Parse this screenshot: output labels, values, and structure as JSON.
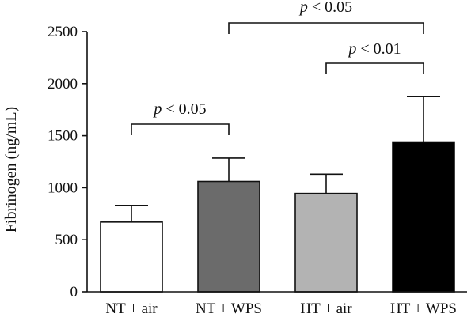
{
  "chart_data": {
    "type": "bar",
    "ylabel": "Fibrinogen (ng/mL)",
    "ylim": [
      0,
      2500
    ],
    "yticks": [
      0,
      500,
      1000,
      1500,
      2000,
      2500
    ],
    "categories": [
      "NT + air",
      "NT + WPS",
      "HT + air",
      "HT + WPS"
    ],
    "values": [
      670,
      1060,
      945,
      1440
    ],
    "errors": [
      160,
      225,
      185,
      435
    ],
    "bar_colors": [
      "#ffffff",
      "#6b6b6b",
      "#b3b3b3",
      "#000000"
    ],
    "significance": [
      {
        "from": 0,
        "to": 1,
        "text": "< 0.05",
        "symbol": "p"
      },
      {
        "from": 2,
        "to": 3,
        "text": "< 0.01",
        "symbol": "p"
      },
      {
        "from": 1,
        "to": 3,
        "text": "< 0.05",
        "symbol": "p"
      }
    ]
  }
}
